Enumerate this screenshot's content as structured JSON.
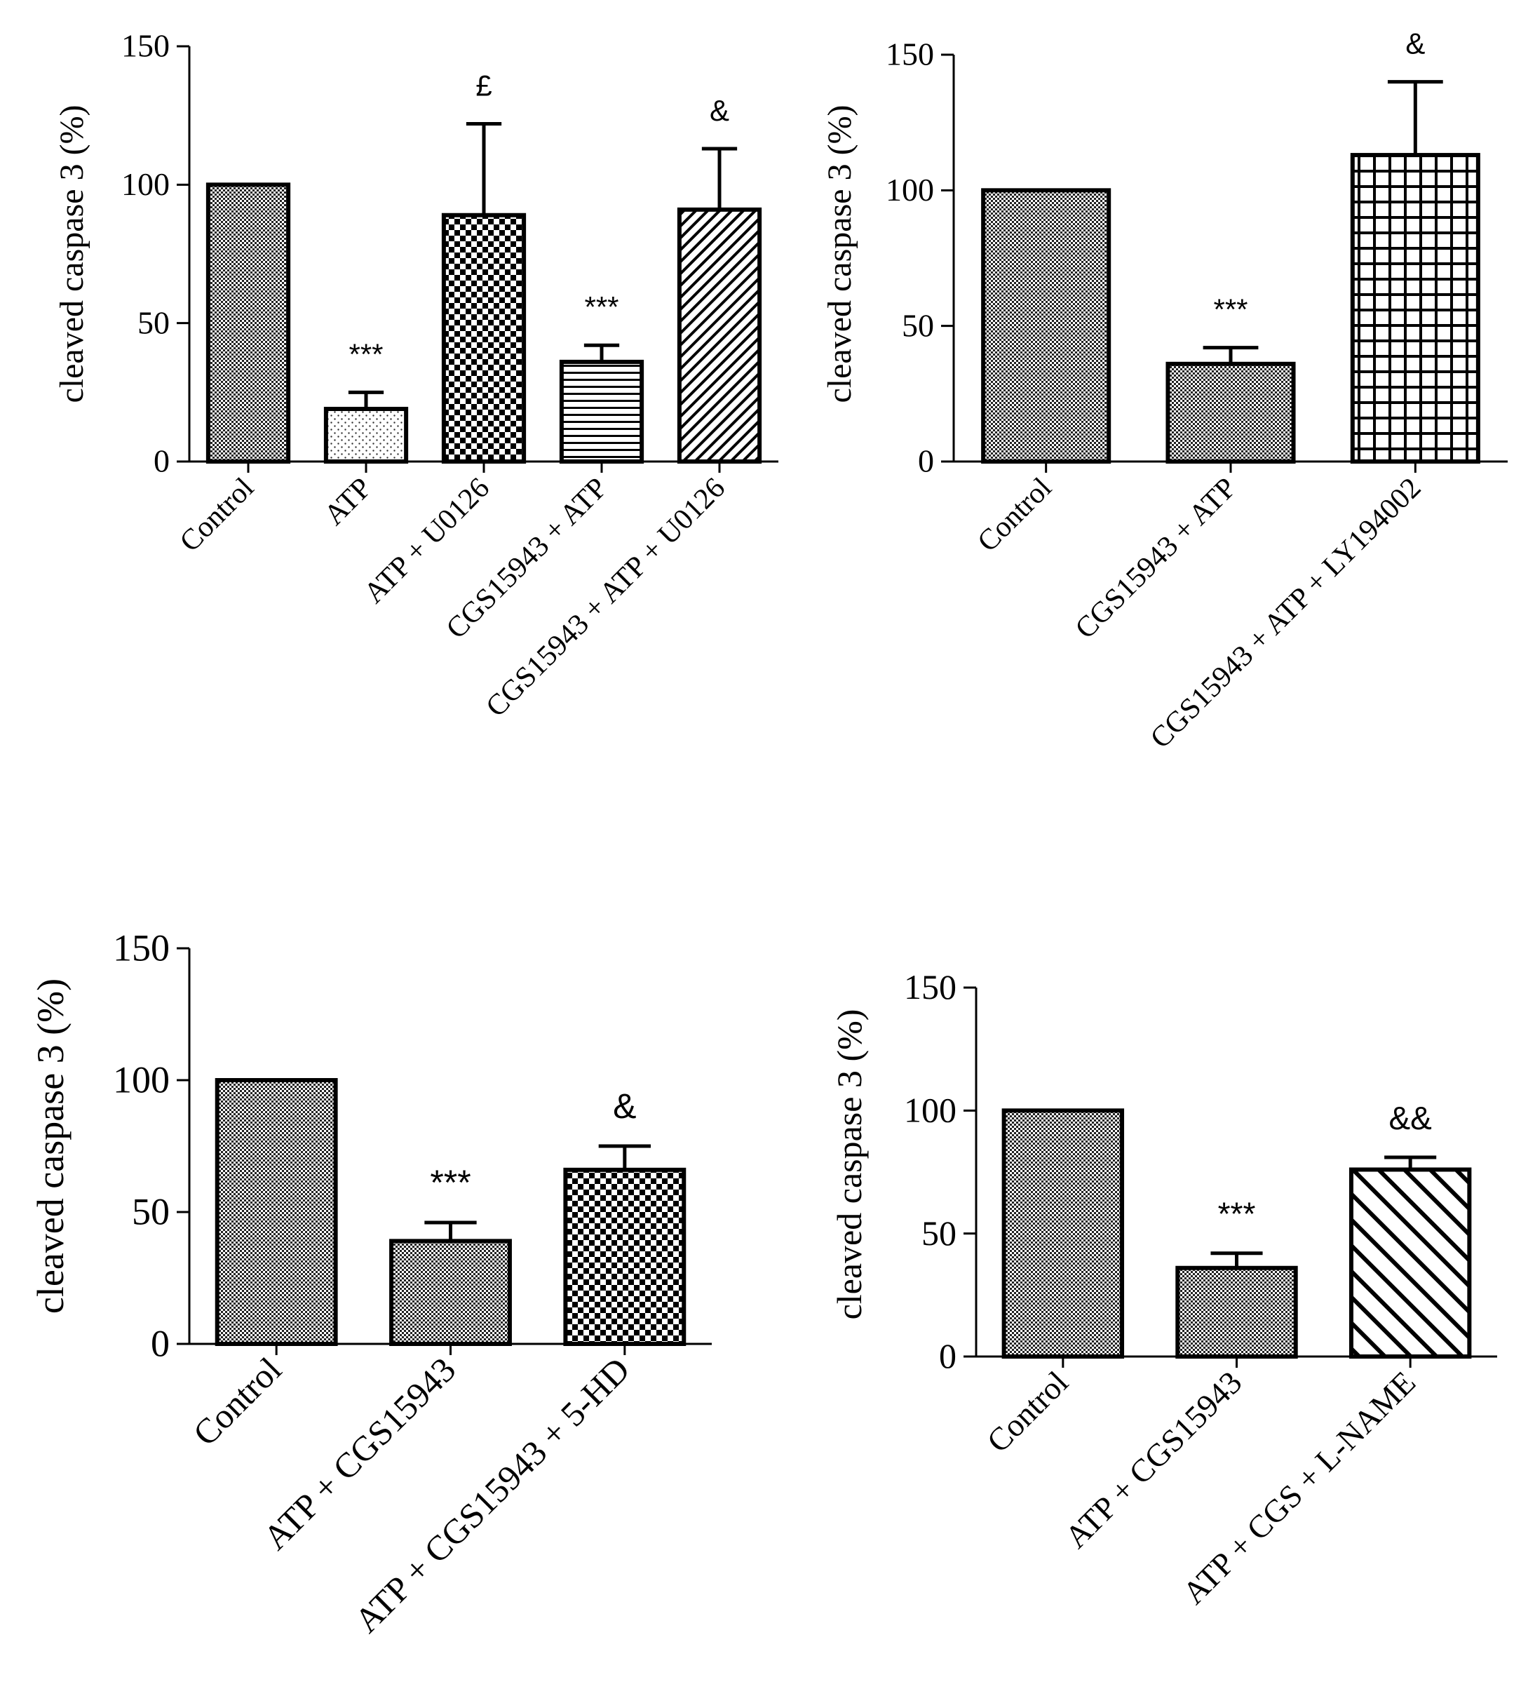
{
  "chart_data": [
    {
      "type": "bar",
      "ylabel": "cleaved caspase 3 (%)",
      "ylim": [
        0,
        150
      ],
      "yticks": [
        0,
        50,
        100,
        150
      ],
      "categories": [
        "Control",
        "ATP",
        "ATP + U0126",
        "CGS15943 + ATP",
        "CGS15943 + ATP + U0126"
      ],
      "values": [
        100,
        19,
        89,
        36,
        91
      ],
      "errors": [
        0,
        6,
        33,
        6,
        22
      ],
      "annotations": [
        "",
        "***",
        "£",
        "***",
        "&"
      ],
      "patterns": [
        "fine-check",
        "dots",
        "checker",
        "hlines",
        "diag-down"
      ]
    },
    {
      "type": "bar",
      "ylabel": "cleaved caspase 3 (%)",
      "ylim": [
        0,
        150
      ],
      "yticks": [
        0,
        50,
        100,
        150
      ],
      "categories": [
        "Control",
        "CGS15943 + ATP",
        "CGS15943 + ATP + LY194002"
      ],
      "values": [
        100,
        36,
        113
      ],
      "errors": [
        0,
        6,
        27
      ],
      "annotations": [
        "",
        "***",
        "&"
      ],
      "patterns": [
        "fine-check",
        "fine-check",
        "grid"
      ]
    },
    {
      "type": "bar",
      "ylabel": "cleaved caspase 3 (%)",
      "ylim": [
        0,
        150
      ],
      "yticks": [
        0,
        50,
        100,
        150
      ],
      "categories": [
        "Control",
        "ATP + CGS15943",
        "ATP + CGS15943 + 5-HD"
      ],
      "values": [
        100,
        39,
        66
      ],
      "errors": [
        0,
        7,
        9
      ],
      "annotations": [
        "",
        "***",
        "&"
      ],
      "patterns": [
        "fine-check",
        "fine-check",
        "checker"
      ]
    },
    {
      "type": "bar",
      "ylabel": "cleaved caspase 3 (%)",
      "ylim": [
        0,
        150
      ],
      "yticks": [
        0,
        50,
        100,
        150
      ],
      "categories": [
        "Control",
        "ATP + CGS15943",
        "ATP + CGS + L-NAME"
      ],
      "values": [
        100,
        36,
        76
      ],
      "errors": [
        0,
        6,
        5
      ],
      "annotations": [
        "",
        "***",
        "&&"
      ],
      "patterns": [
        "fine-check",
        "fine-check",
        "diag-up"
      ]
    }
  ]
}
